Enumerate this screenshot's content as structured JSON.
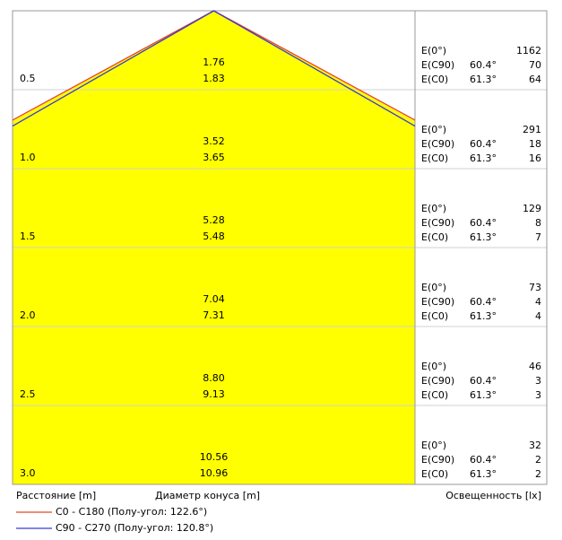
{
  "chart_data": {
    "type": "cone",
    "headers": {
      "distance": "Расстояние [m]",
      "diameter": "Диаметр конуса [m]",
      "illuminance": "Освещенность [lx]"
    },
    "labels": {
      "e0": "E(0°)",
      "e_c90": "E(C90)",
      "e_c0": "E(C0)"
    },
    "series": [
      {
        "name": "C0 - C180 (Полу-угол: 122.6°)",
        "color": "#e8432a",
        "half_angle": {
          "value": 61.3,
          "label": "61.3°"
        }
      },
      {
        "name": "C90 - C270 (Полу-угол: 120.8°)",
        "color": "#3a3ad8",
        "half_angle": {
          "value": 60.4,
          "label": "60.4°"
        }
      }
    ],
    "rows": [
      {
        "distance": "0.5",
        "d_c90": "1.76",
        "d_c0": "1.83",
        "e0": 1162,
        "e_c90": 70,
        "e_c0": 64
      },
      {
        "distance": "1.0",
        "d_c90": "3.52",
        "d_c0": "3.65",
        "e0": 291,
        "e_c90": 18,
        "e_c0": 16
      },
      {
        "distance": "1.5",
        "d_c90": "5.28",
        "d_c0": "5.48",
        "e0": 129,
        "e_c90": 8,
        "e_c0": 7
      },
      {
        "distance": "2.0",
        "d_c90": "7.04",
        "d_c0": "7.31",
        "e0": 73,
        "e_c90": 4,
        "e_c0": 4
      },
      {
        "distance": "2.5",
        "d_c90": "8.80",
        "d_c0": "9.13",
        "e0": 46,
        "e_c90": 3,
        "e_c0": 3
      },
      {
        "distance": "3.0",
        "d_c90": "10.56",
        "d_c0": "10.96",
        "e0": 32,
        "e_c90": 2,
        "e_c0": 2
      }
    ]
  }
}
